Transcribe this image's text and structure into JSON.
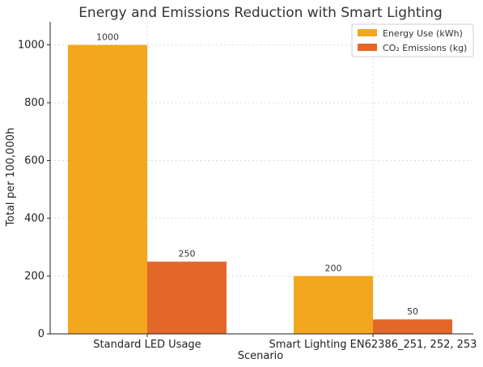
{
  "chart_data": {
    "type": "bar",
    "title": "Energy and Emissions Reduction with Smart Lighting",
    "xlabel": "Scenario",
    "ylabel": "Total per 100,000h",
    "categories": [
      "Standard LED Usage",
      "Smart Lighting EN62386_251, 252, 253"
    ],
    "series": [
      {
        "name": "Energy Use (kWh)",
        "values": [
          1000,
          200
        ],
        "color": "#f2a71e"
      },
      {
        "name": "CO₂ Emissions (kg)",
        "values": [
          250,
          50
        ],
        "color": "#e4672a"
      }
    ],
    "ylim": [
      0,
      1080
    ],
    "yticks": [
      0,
      200,
      400,
      600,
      800,
      1000
    ],
    "grid": true,
    "legend_position": "top-right"
  }
}
